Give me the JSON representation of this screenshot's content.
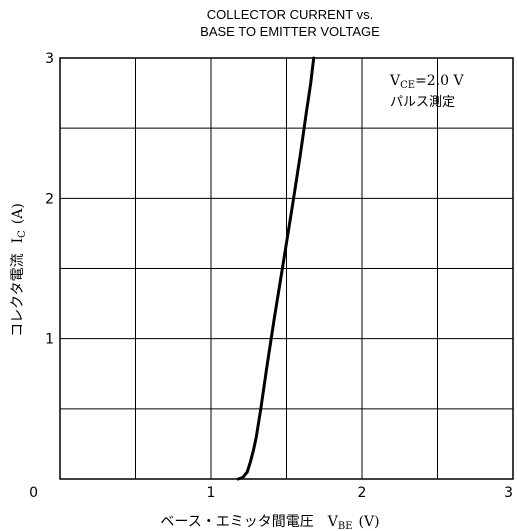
{
  "chart_data": {
    "type": "line",
    "title_line1": "COLLECTOR CURRENT vs.",
    "title_line2": "BASE TO EMITTER VOLTAGE",
    "xlabel": "ベース・エミッタ間電圧",
    "xlabel_symbol": "V",
    "xlabel_sub": "BE",
    "xlabel_unit": "(V)",
    "ylabel": "コレクタ電流",
    "ylabel_symbol": "I",
    "ylabel_sub": "C",
    "ylabel_unit": "(A)",
    "annotation": {
      "condition_symbol": "V",
      "condition_sub": "CE",
      "condition_value": "=2.0 V",
      "condition_note": "パルス測定"
    },
    "xlim": [
      0,
      3
    ],
    "ylim": [
      0,
      3
    ],
    "x_ticks": [
      {
        "value": 0,
        "label": "0"
      },
      {
        "value": 1,
        "label": "1"
      },
      {
        "value": 2,
        "label": "2"
      },
      {
        "value": 3,
        "label": "3"
      }
    ],
    "y_ticks": [
      {
        "value": 0,
        "label": "0"
      },
      {
        "value": 1,
        "label": "1"
      },
      {
        "value": 2,
        "label": "2"
      },
      {
        "value": 3,
        "label": "3"
      }
    ],
    "grid": true,
    "grid_x_step": 0.5,
    "grid_y_step": 0.5,
    "series": [
      {
        "color": "#000000",
        "x": [
          1.18,
          1.21,
          1.24,
          1.26,
          1.28,
          1.3,
          1.33,
          1.37,
          1.42,
          1.48,
          1.54,
          1.59,
          1.63,
          1.66,
          1.68
        ],
        "y": [
          0.0,
          0.01,
          0.05,
          0.12,
          0.2,
          0.3,
          0.5,
          0.8,
          1.15,
          1.55,
          1.95,
          2.3,
          2.6,
          2.82,
          3.0
        ]
      }
    ]
  }
}
